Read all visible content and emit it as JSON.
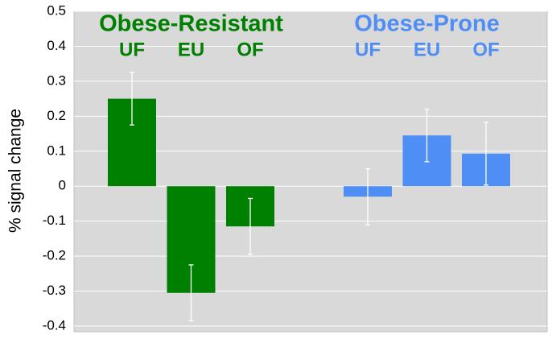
{
  "chart_data": {
    "type": "bar",
    "y_label": "% signal change",
    "categories": [
      "UF",
      "EU",
      "OF"
    ],
    "series": [
      {
        "name": "Obese-Resistant",
        "color": "#008000",
        "values": [
          0.25,
          -0.305,
          -0.115
        ],
        "errors": [
          0.075,
          0.08,
          0.08
        ]
      },
      {
        "name": "Obese-Prone",
        "color": "#4f8ef5",
        "values": [
          -0.03,
          0.145,
          0.093
        ],
        "errors": [
          0.08,
          0.075,
          0.09
        ]
      }
    ],
    "ylim": [
      -0.4,
      0.5
    ],
    "yticks": [
      -0.4,
      -0.3,
      -0.2,
      -0.1,
      0,
      0.1,
      0.2,
      0.3,
      0.4,
      0.5
    ],
    "grid": true,
    "error_bar_color": "#ffffff",
    "background": "#d9d9d9"
  }
}
